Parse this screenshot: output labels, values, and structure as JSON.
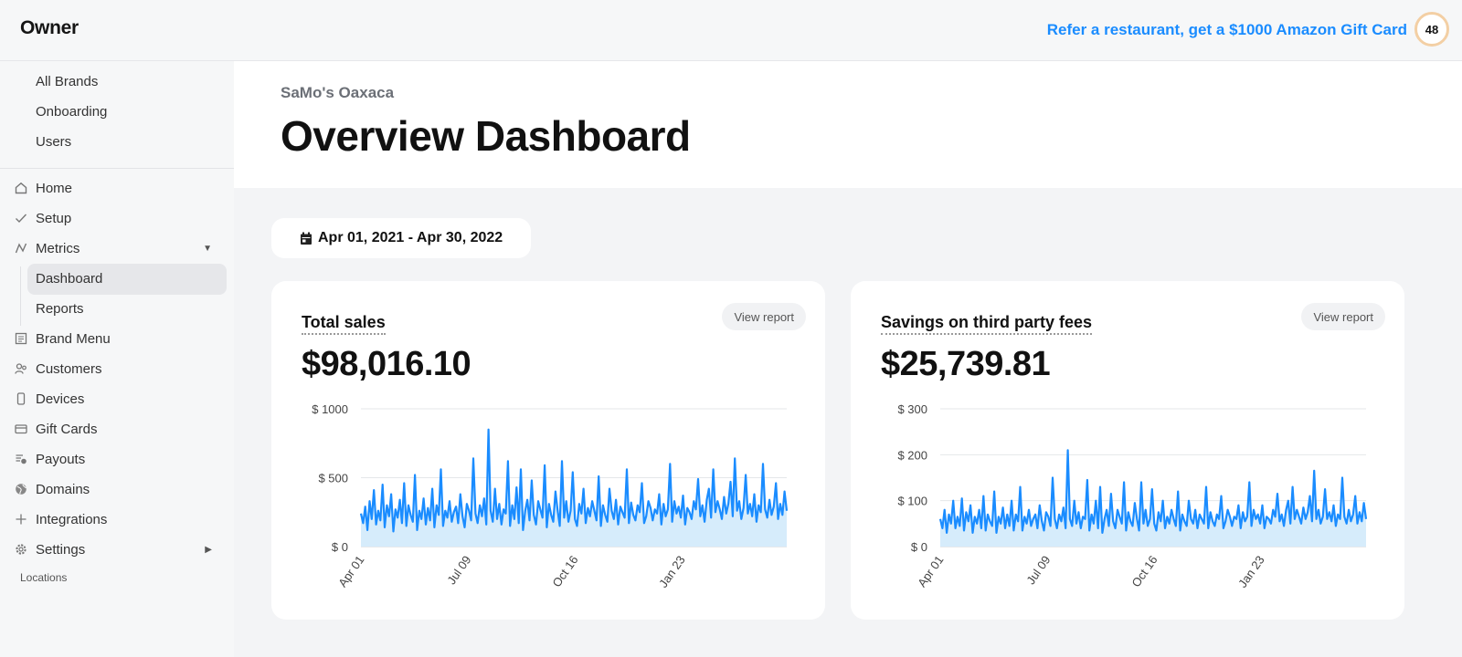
{
  "app": {
    "logo": "Owner",
    "refer_link": "Refer a restaurant, get a $1000 Amazon Gift Card",
    "avatar_count": "48"
  },
  "sidebar": {
    "top_items": [
      {
        "label": "All Brands"
      },
      {
        "label": "Onboarding"
      },
      {
        "label": "Users"
      }
    ],
    "nav": [
      {
        "label": "Home",
        "icon": "home-icon"
      },
      {
        "label": "Setup",
        "icon": "check-icon"
      },
      {
        "label": "Metrics",
        "icon": "metrics-icon"
      },
      {
        "label": "Brand Menu",
        "icon": "menu-icon"
      },
      {
        "label": "Customers",
        "icon": "customers-icon"
      },
      {
        "label": "Devices",
        "icon": "device-icon"
      },
      {
        "label": "Gift Cards",
        "icon": "gift-card-icon"
      },
      {
        "label": "Payouts",
        "icon": "payouts-icon"
      },
      {
        "label": "Domains",
        "icon": "globe-icon"
      },
      {
        "label": "Integrations",
        "icon": "plus-icon"
      },
      {
        "label": "Settings",
        "icon": "gear-icon"
      }
    ],
    "metrics_children": [
      {
        "label": "Dashboard"
      },
      {
        "label": "Reports"
      }
    ],
    "locations": "Locations"
  },
  "header": {
    "brand": "SaMo's Oaxaca",
    "title": "Overview Dashboard"
  },
  "date_range": "Apr 01, 2021 - Apr 30, 2022",
  "cards": [
    {
      "title": "Total sales",
      "value": "$98,016.10",
      "view_label": "View report"
    },
    {
      "title": "Savings on third party fees",
      "value": "$25,739.81",
      "view_label": "View report"
    }
  ],
  "colors": {
    "accent": "#1a8cff",
    "line": "#1a8cff",
    "area": "#d6ecfb"
  },
  "chart_data": [
    {
      "type": "area",
      "y_ticks": [
        "$ 0",
        "$ 500",
        "$ 1000"
      ],
      "x_ticks": [
        "Apr 01",
        "Jul 09",
        "Oct 16",
        "Jan 23"
      ],
      "x_range": [
        "2021-04-01",
        "2022-04-30"
      ],
      "ylim": [
        0,
        1000
      ],
      "grid": true,
      "series": [
        {
          "values": [
            240,
            170,
            290,
            120,
            330,
            200,
            410,
            160,
            260,
            190,
            450,
            140,
            300,
            220,
            380,
            110,
            270,
            210,
            340,
            170,
            460,
            150,
            300,
            230,
            180,
            520,
            120,
            260,
            200,
            350,
            160,
            280,
            190,
            420,
            140,
            300,
            230,
            560,
            150,
            260,
            210,
            330,
            180,
            250,
            290,
            170,
            380,
            220,
            140,
            310,
            260,
            190,
            640,
            240,
            170,
            300,
            220,
            350,
            160,
            850,
            260,
            180,
            420,
            200,
            310,
            160,
            270,
            240,
            620,
            150,
            300,
            200,
            430,
            170,
            560,
            120,
            260,
            340,
            190,
            480,
            230,
            160,
            330,
            270,
            210,
            590,
            140,
            310,
            230,
            180,
            400,
            260,
            150,
            620,
            210,
            330,
            180,
            260,
            540,
            200,
            150,
            310,
            240,
            420,
            170,
            280,
            220,
            330,
            260,
            190,
            510,
            150,
            300,
            230,
            180,
            420,
            260,
            200,
            340,
            160,
            290,
            250,
            210,
            560,
            170,
            320,
            230,
            190,
            300,
            250,
            460,
            170,
            220,
            330,
            280,
            190,
            270,
            240,
            380,
            160,
            310,
            220,
            270,
            600,
            180,
            330,
            240,
            290,
            210,
            370,
            160,
            280,
            250,
            200,
            330,
            270,
            490,
            220,
            300,
            180,
            340,
            420,
            210,
            560,
            250,
            330,
            270,
            200,
            360,
            240,
            310,
            470,
            220,
            640,
            260,
            330,
            200,
            280,
            520,
            240,
            310,
            220,
            380,
            180,
            300,
            250,
            600,
            270,
            210,
            340,
            230,
            290,
            460,
            200,
            310,
            230,
            400,
            260
          ]
        }
      ]
    },
    {
      "type": "area",
      "y_ticks": [
        "$ 0",
        "$ 100",
        "$ 200",
        "$ 300"
      ],
      "x_ticks": [
        "Apr 01",
        "Jul 09",
        "Oct 16",
        "Jan 23"
      ],
      "x_range": [
        "2021-04-01",
        "2022-04-30"
      ],
      "ylim": [
        0,
        300
      ],
      "grid": true,
      "series": [
        {
          "values": [
            60,
            40,
            80,
            30,
            70,
            50,
            100,
            40,
            65,
            45,
            105,
            35,
            75,
            55,
            90,
            30,
            65,
            50,
            80,
            40,
            110,
            35,
            70,
            55,
            45,
            120,
            30,
            65,
            50,
            85,
            40,
            70,
            45,
            100,
            35,
            70,
            55,
            130,
            35,
            65,
            50,
            80,
            45,
            60,
            70,
            40,
            90,
            55,
            35,
            75,
            65,
            45,
            150,
            60,
            40,
            70,
            55,
            85,
            40,
            210,
            60,
            45,
            100,
            50,
            75,
            40,
            65,
            60,
            145,
            35,
            70,
            50,
            100,
            40,
            130,
            30,
            60,
            80,
            45,
            115,
            55,
            40,
            80,
            65,
            50,
            140,
            35,
            75,
            55,
            45,
            95,
            60,
            35,
            140,
            50,
            80,
            45,
            60,
            125,
            50,
            35,
            75,
            55,
            100,
            40,
            65,
            50,
            80,
            60,
            45,
            120,
            35,
            70,
            55,
            45,
            100,
            60,
            50,
            80,
            40,
            70,
            60,
            50,
            130,
            40,
            75,
            55,
            45,
            70,
            60,
            110,
            40,
            55,
            80,
            65,
            45,
            65,
            60,
            90,
            40,
            75,
            55,
            65,
            140,
            45,
            80,
            60,
            70,
            50,
            90,
            40,
            65,
            60,
            50,
            80,
            65,
            115,
            55,
            70,
            45,
            80,
            100,
            50,
            130,
            60,
            80,
            65,
            50,
            85,
            60,
            75,
            110,
            55,
            165,
            60,
            80,
            50,
            65,
            125,
            60,
            75,
            55,
            90,
            45,
            70,
            60,
            150,
            65,
            50,
            80,
            55,
            70,
            110,
            50,
            75,
            55,
            95,
            60
          ]
        }
      ]
    }
  ]
}
